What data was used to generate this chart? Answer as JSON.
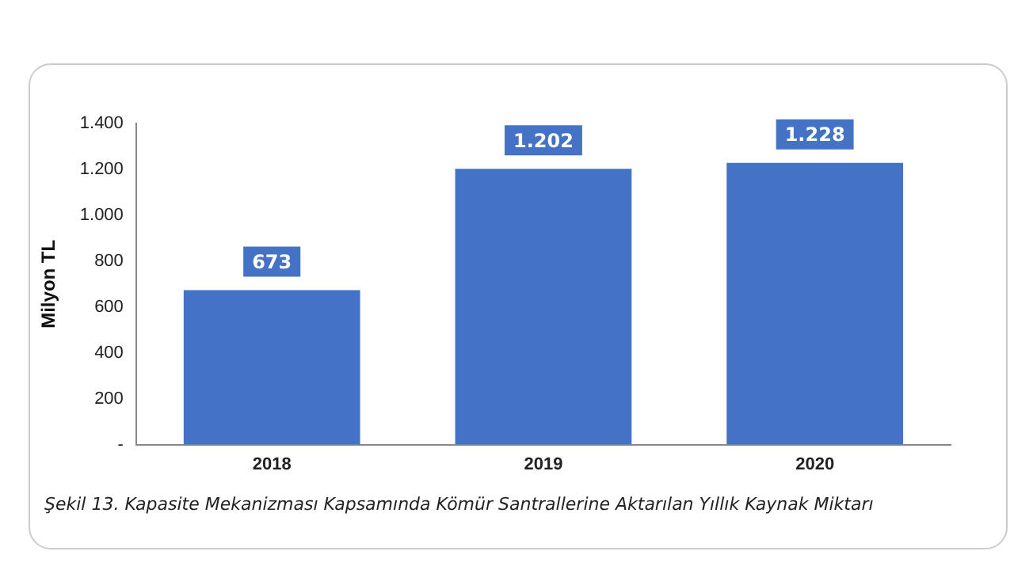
{
  "chart_data": {
    "type": "bar",
    "ylabel": "Milyon TL",
    "categories": [
      "2018",
      "2019",
      "2020"
    ],
    "values": [
      673,
      1202,
      1228
    ],
    "color": "#4472c4",
    "value_labels": [
      "673",
      "1.202",
      "1.228"
    ],
    "ylim": [
      0,
      1400
    ],
    "yticks": [
      {
        "value": 0,
        "label": "-"
      },
      200,
      400,
      600,
      800,
      {
        "value": 1000,
        "label": "1.000"
      },
      {
        "value": 1200,
        "label": "1.200"
      },
      {
        "value": 1400,
        "label": "1.400"
      }
    ],
    "grid": false,
    "legend": false,
    "annotations": [
      "Şekil 13. Kapasite Mekanizması Kapsamında Kömür Santrallerine Aktarılan Yıllık Kaynak Miktarı"
    ]
  }
}
